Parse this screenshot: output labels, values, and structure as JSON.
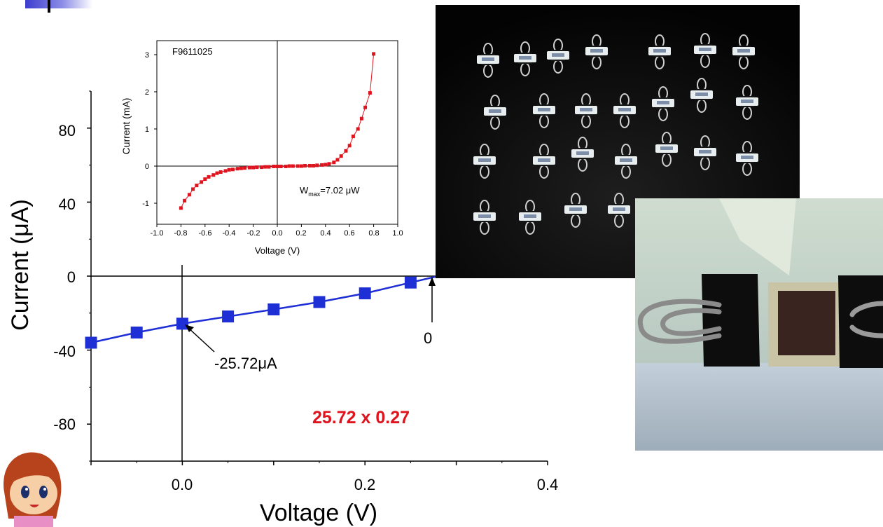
{
  "chart_data": [
    {
      "type": "line",
      "xlabel": "Voltage (V)",
      "ylabel": "Current (μA)",
      "xlim": [
        -0.1,
        0.4
      ],
      "ylim": [
        -100,
        100
      ],
      "xticks": [
        "0.0",
        "0.2",
        "0.4"
      ],
      "yticks": [
        "80",
        "40",
        "0",
        "-40",
        "-80"
      ],
      "x": [
        -0.1,
        -0.05,
        0.0,
        0.05,
        0.1,
        0.15,
        0.2,
        0.25,
        0.28
      ],
      "y": [
        -36,
        -30.5,
        -25.72,
        -21.8,
        -18.0,
        -14.0,
        -9.3,
        -3.5,
        0
      ],
      "series_color": "#1f2fd6",
      "annotations": {
        "isc_label": "-25.72μA",
        "voc_label": "0",
        "power_text": "25.72 x 0.27"
      },
      "power_text_color": "#e0141e"
    },
    {
      "type": "scatter",
      "title": "F9611025",
      "xlabel": "Voltage (V)",
      "ylabel": "Current (mA)",
      "xlim": [
        -1.0,
        1.0
      ],
      "ylim": [
        -1.2,
        3.3
      ],
      "xticks": [
        "-1.0",
        "-0.8",
        "-0.6",
        "-0.4",
        "-0.2",
        "0.0",
        "0.2",
        "0.4",
        "0.6",
        "0.8",
        "1.0"
      ],
      "yticks": [
        "3",
        "2",
        "1",
        "0",
        "-1"
      ],
      "x": [
        -0.8,
        -0.77,
        -0.73,
        -0.7,
        -0.67,
        -0.63,
        -0.6,
        -0.57,
        -0.53,
        -0.5,
        -0.47,
        -0.43,
        -0.4,
        -0.37,
        -0.33,
        -0.3,
        -0.27,
        -0.23,
        -0.2,
        -0.17,
        -0.13,
        -0.1,
        -0.07,
        -0.03,
        0.0,
        0.03,
        0.07,
        0.1,
        0.13,
        0.17,
        0.2,
        0.23,
        0.27,
        0.3,
        0.33,
        0.37,
        0.4,
        0.43,
        0.47,
        0.5,
        0.53,
        0.57,
        0.6,
        0.63,
        0.67,
        0.7,
        0.73,
        0.77,
        0.8
      ],
      "y": [
        -1.13,
        -0.93,
        -0.77,
        -0.62,
        -0.52,
        -0.43,
        -0.35,
        -0.29,
        -0.24,
        -0.19,
        -0.16,
        -0.13,
        -0.1,
        -0.09,
        -0.07,
        -0.06,
        -0.05,
        -0.04,
        -0.04,
        -0.03,
        -0.03,
        -0.02,
        -0.02,
        -0.01,
        -0.01,
        -0.01,
        -0.01,
        0.0,
        0.0,
        0.0,
        0.0,
        0.01,
        0.01,
        0.01,
        0.02,
        0.03,
        0.04,
        0.06,
        0.1,
        0.17,
        0.27,
        0.41,
        0.55,
        0.8,
        1.0,
        1.28,
        1.58,
        1.97,
        3.02
      ],
      "series_color": "#e0141e",
      "annotation": {
        "text_main": "W",
        "text_sub": "max",
        "text_rest": "=7.02 μW"
      }
    }
  ]
}
